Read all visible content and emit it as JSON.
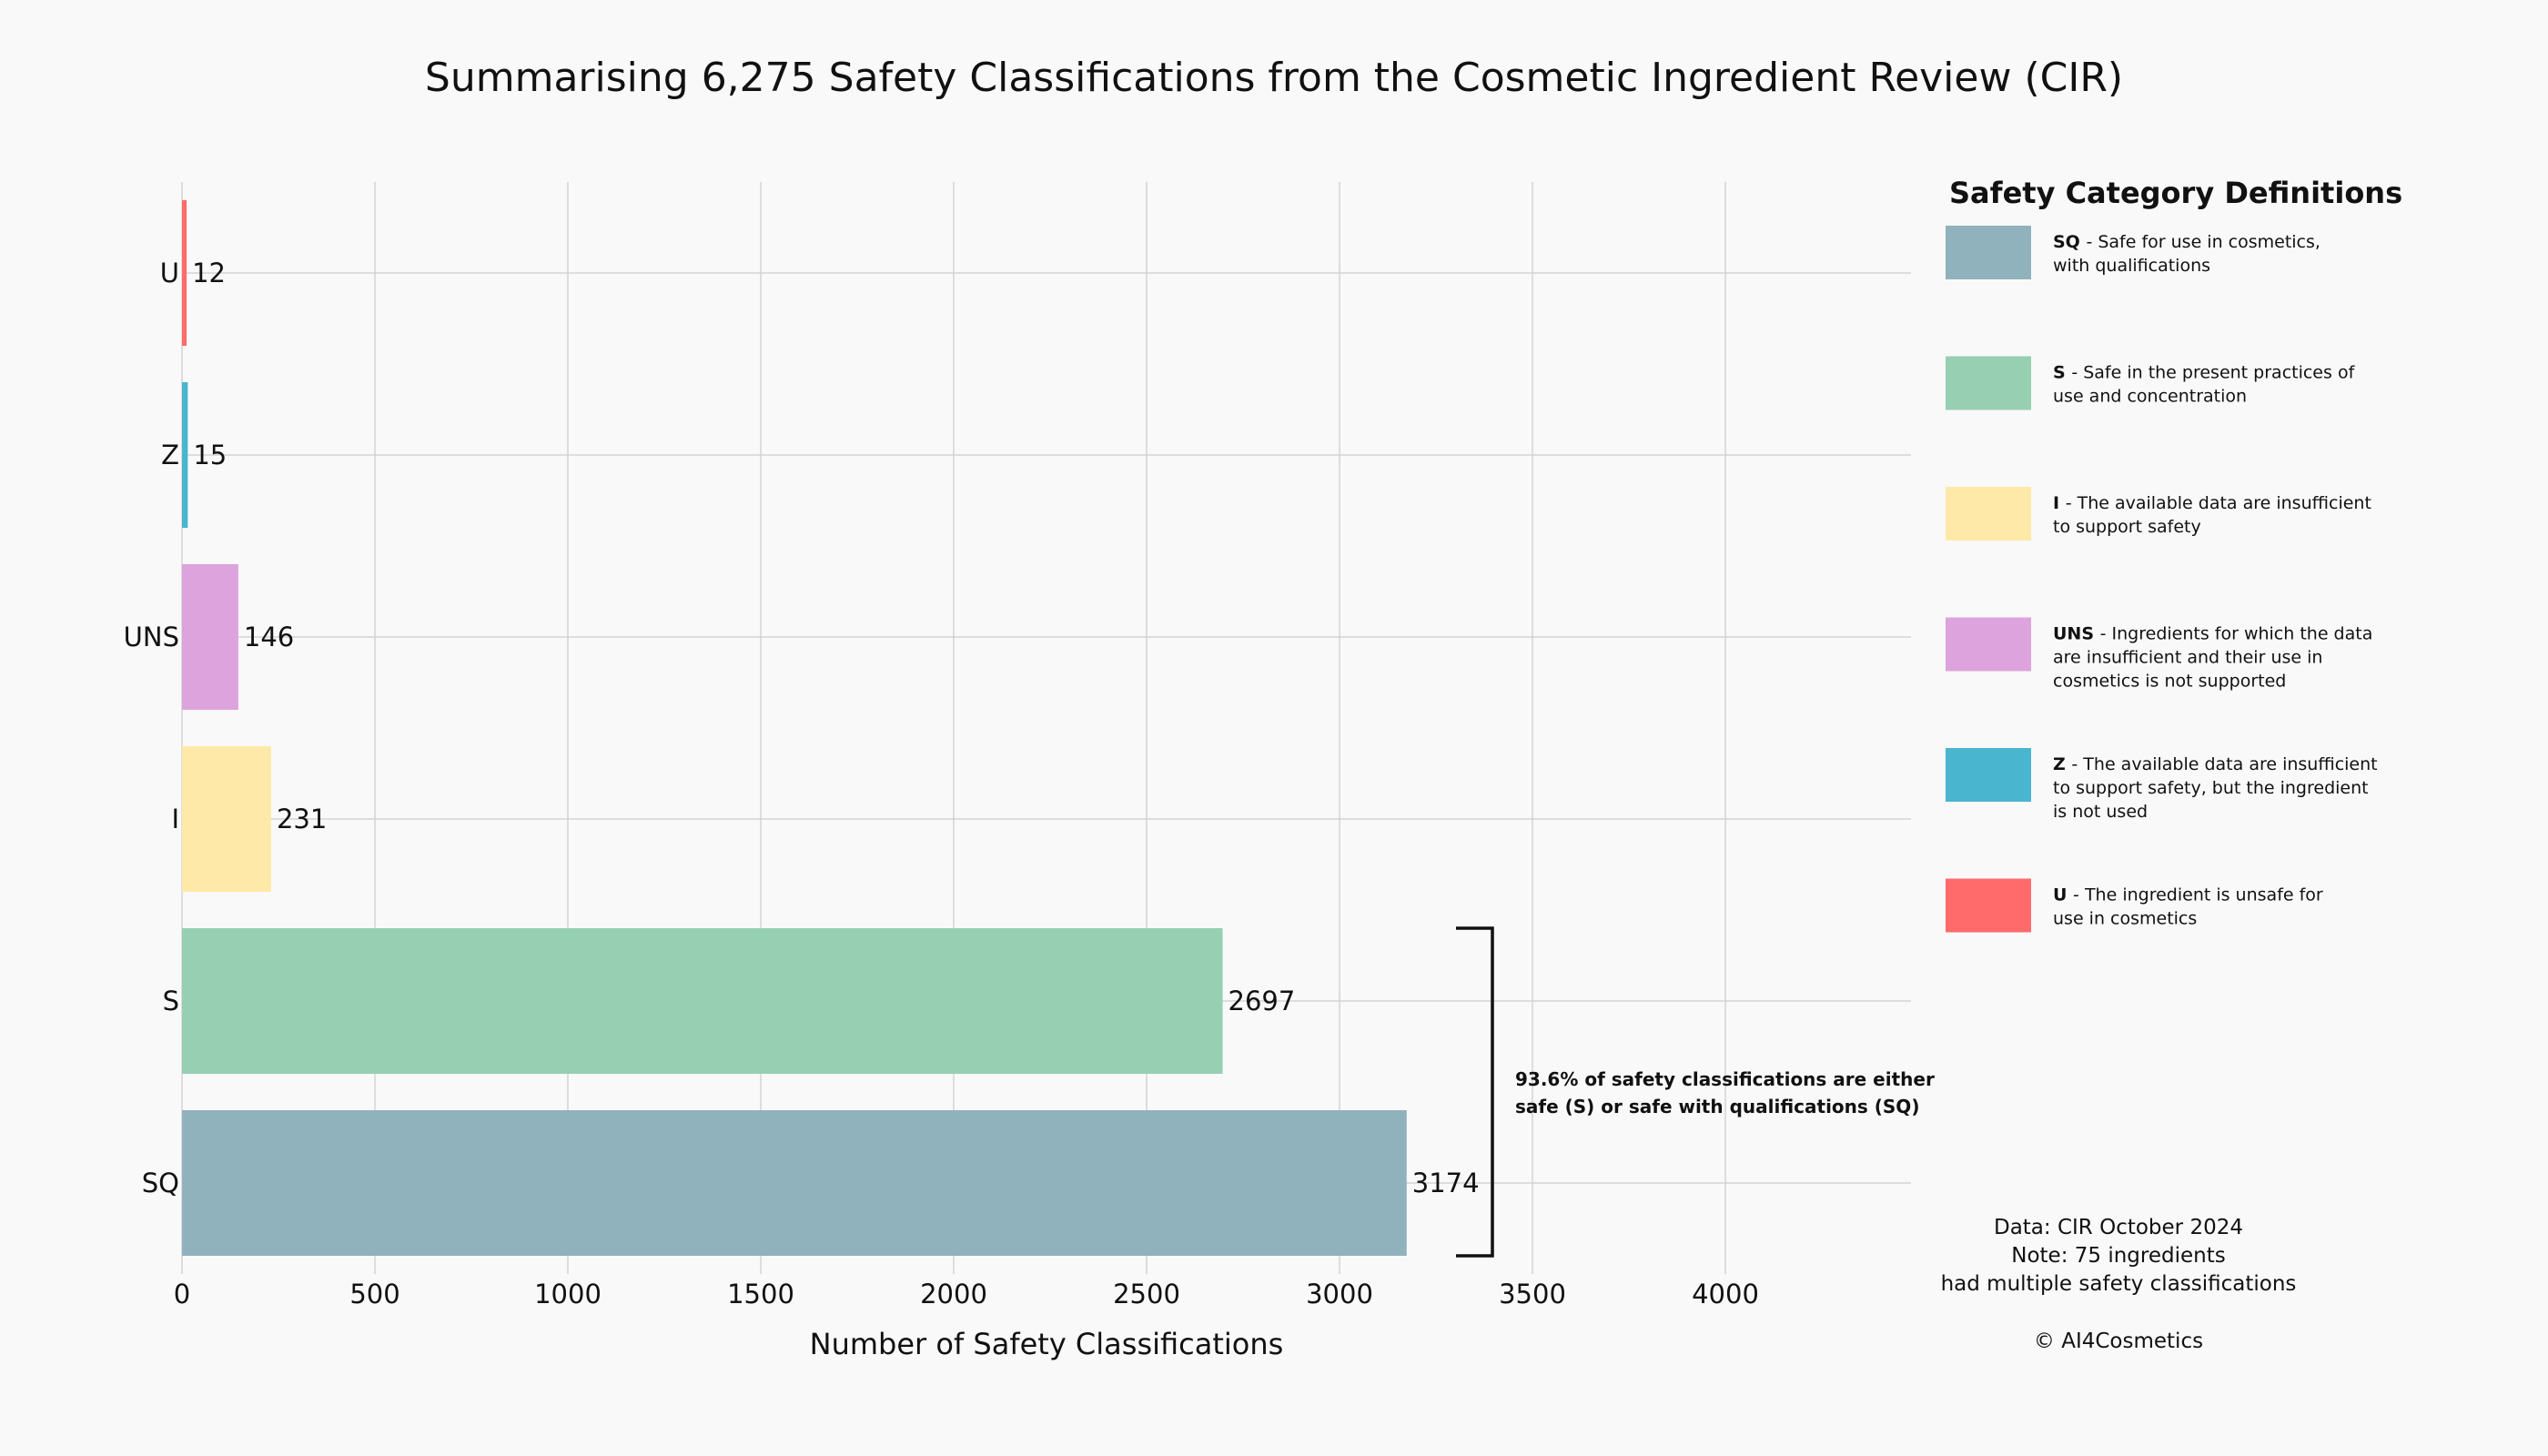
{
  "chart_data": {
    "type": "bar",
    "orientation": "horizontal",
    "title": "Summarising 6,275 Safety Classifications from the Cosmetic Ingredient Review (CIR)",
    "xlabel": "Number of Safety Classifications",
    "ylabel": "",
    "xlim": [
      0,
      4450
    ],
    "xticks": [
      0,
      500,
      1000,
      1500,
      2000,
      2500,
      3000,
      3500,
      4000
    ],
    "grid": true,
    "categories": [
      "SQ",
      "S",
      "I",
      "UNS",
      "Z",
      "U"
    ],
    "values": [
      3174,
      2697,
      231,
      146,
      15,
      12
    ],
    "colors": [
      "#8fb2bd",
      "#96cfb1",
      "#ffe9a8",
      "#dda3dc",
      "#4ab5cf",
      "#ff6b6b"
    ],
    "annotation": {
      "lines": [
        "93.6% of safety classifications are either",
        "safe (S) or safe with qualifications (SQ)"
      ],
      "bracket_categories": [
        "S",
        "SQ"
      ]
    },
    "legend": {
      "title": "Safety Category Definitions",
      "placement": "right",
      "items": [
        {
          "code": "SQ",
          "lines": [
            "- Safe for use in cosmetics,",
            "with qualifications"
          ],
          "color": "#8fb2bd"
        },
        {
          "code": "S",
          "lines": [
            "- Safe in the present practices of",
            "use and concentration"
          ],
          "color": "#96cfb1"
        },
        {
          "code": "I",
          "lines": [
            "- The available data are insufficient",
            "to support safety"
          ],
          "color": "#ffe9a8"
        },
        {
          "code": "UNS",
          "lines": [
            "- Ingredients for which the data",
            "are insufficient and their use in",
            "cosmetics is not supported"
          ],
          "color": "#dda3dc"
        },
        {
          "code": "Z",
          "lines": [
            "- The available data are insufficient",
            "to support safety, but the ingredient",
            "is not used"
          ],
          "color": "#4ab5cf"
        },
        {
          "code": "U",
          "lines": [
            "- The ingredient is unsafe for",
            "use in cosmetics"
          ],
          "color": "#ff6b6b"
        }
      ]
    },
    "footer": {
      "lines": [
        "Data: CIR October 2024",
        "Note: 75 ingredients",
        "had multiple safety classifications"
      ],
      "copyright": "© AI4Cosmetics"
    }
  }
}
